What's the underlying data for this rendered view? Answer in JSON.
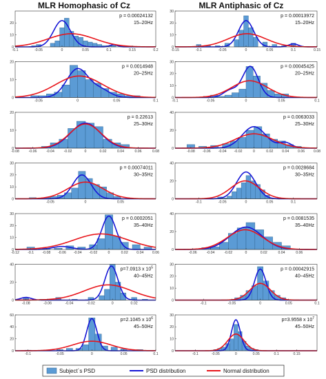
{
  "legend": {
    "items": [
      {
        "label": "Subject`s PSD",
        "kind": "bar",
        "color": "#5b9bd5"
      },
      {
        "label": "PSD distribution",
        "kind": "line",
        "color": "#1515d6"
      },
      {
        "label": "Normal distribution",
        "kind": "line",
        "color": "#e8141a"
      }
    ]
  },
  "chart_data": [
    {
      "type": "bar",
      "column": "MLR Homophasic of Cz",
      "title": "MLR Homophasic of Cz",
      "panels": [
        {
          "p": "p = 0.00024132",
          "band": "15–20Hz",
          "ylim": [
            0,
            30
          ],
          "yticks": [
            0,
            10,
            20
          ],
          "xlim": [
            -0.1,
            0.2
          ],
          "xticks": [
            -0.1,
            -0.05,
            0,
            0.05,
            0.1,
            0.15,
            0.2
          ],
          "bins": [
            -0.06,
            -0.05,
            -0.04,
            -0.03,
            -0.02,
            -0.01,
            0,
            0.01,
            0.02,
            0.03,
            0.04,
            0.05,
            0.06,
            0.07,
            0.08,
            0.09,
            0.1,
            0.11,
            0.12,
            0.13
          ],
          "counts": [
            1,
            2,
            0,
            0,
            3,
            5,
            16,
            24,
            13,
            9,
            8,
            5,
            4,
            3,
            2,
            1,
            1,
            1,
            0,
            1
          ],
          "psd": {
            "mu": 0.0,
            "sigma": 0.018,
            "amp": 22,
            "mu2": 0.11,
            "sigma2": 0.008,
            "amp2": 1.8
          },
          "normal": {
            "mu": 0.02,
            "sigma": 0.05,
            "amp": 11
          }
        },
        {
          "p": "p = 0.0014948",
          "band": "20–25Hz",
          "ylim": [
            0,
            20
          ],
          "yticks": [
            0,
            10,
            20
          ],
          "xlim": [
            -0.08,
            0.1
          ],
          "xticks": [
            -0.05,
            0,
            0.05,
            0.1
          ],
          "bins": [
            -0.055,
            -0.045,
            -0.035,
            -0.025,
            -0.015,
            -0.005,
            0.005,
            0.015,
            0.025,
            0.035,
            0.045,
            0.055,
            0.065,
            0.075
          ],
          "counts": [
            1,
            1,
            2,
            3,
            7,
            18,
            15,
            10,
            8,
            5,
            3,
            2,
            1,
            1
          ],
          "psd": {
            "mu": 0.0,
            "sigma": 0.014,
            "amp": 16,
            "mu2": 0.03,
            "sigma2": 0.012,
            "amp2": 4
          },
          "normal": {
            "mu": 0.002,
            "sigma": 0.03,
            "amp": 12
          }
        },
        {
          "p": "p = 0.22613",
          "band": "25–30Hz",
          "ylim": [
            0,
            20
          ],
          "yticks": [
            0,
            10,
            20
          ],
          "xlim": [
            -0.08,
            0.08
          ],
          "xticks": [
            -0.08,
            -0.06,
            -0.04,
            -0.02,
            0,
            0.02,
            0.04,
            0.06,
            0.08
          ],
          "bins": [
            -0.045,
            -0.035,
            -0.025,
            -0.015,
            -0.005,
            0.005,
            0.015,
            0.025,
            0.035,
            0.045
          ],
          "counts": [
            1,
            3,
            5,
            11,
            15,
            14,
            12,
            5,
            3,
            2
          ],
          "psd": {
            "mu": 0.0,
            "sigma": 0.017,
            "amp": 14
          },
          "normal": {
            "mu": 0.0,
            "sigma": 0.018,
            "amp": 13.5
          }
        },
        {
          "p": "p = 0.00074011",
          "band": "30–35Hz",
          "ylim": [
            0,
            30
          ],
          "yticks": [
            0,
            10,
            20,
            30
          ],
          "xlim": [
            -0.1,
            0.1
          ],
          "xticks": [
            -0.05,
            0,
            0.05
          ],
          "bins": [
            -0.075,
            -0.065,
            -0.055,
            -0.045,
            -0.035,
            -0.025,
            -0.015,
            -0.005,
            0.005,
            0.015,
            0.025,
            0.035,
            0.045
          ],
          "counts": [
            1,
            0,
            1,
            2,
            3,
            5,
            9,
            23,
            17,
            12,
            10,
            5,
            2
          ],
          "psd": {
            "mu": -0.005,
            "sigma": 0.013,
            "amp": 20
          },
          "normal": {
            "mu": 0.0,
            "sigma": 0.025,
            "amp": 14
          }
        },
        {
          "p": "p = 0.0002051",
          "band": "35–40Hz",
          "ylim": [
            0,
            30
          ],
          "yticks": [
            0,
            10,
            20,
            30
          ],
          "xlim": [
            -0.12,
            0.06
          ],
          "xticks": [
            -0.12,
            -0.1,
            -0.08,
            -0.06,
            -0.04,
            -0.02,
            0,
            0.02,
            0.04,
            0.06
          ],
          "bins": [
            -0.1,
            -0.08,
            -0.065,
            -0.05,
            -0.035,
            -0.02,
            -0.01,
            0.0,
            0.01,
            0.02,
            0.035,
            0.05
          ],
          "counts": [
            2,
            1,
            1,
            3,
            2,
            4,
            9,
            29,
            11,
            6,
            4,
            2
          ],
          "psd": {
            "mu": 0.0,
            "sigma": 0.009,
            "amp": 28,
            "mu2": -0.06,
            "sigma2": 0.012,
            "amp2": 2.5
          },
          "normal": {
            "mu": -0.01,
            "sigma": 0.035,
            "amp": 13
          }
        },
        {
          "p": "p=7.0913 x 10",
          "p_exp": "5",
          "band": "40–45Hz",
          "ylim": [
            0,
            40
          ],
          "yticks": [
            0,
            20,
            40
          ],
          "xlim": [
            -0.09,
            0.04
          ],
          "xticks": [
            -0.08,
            -0.06,
            -0.04,
            -0.02,
            0,
            0.02
          ],
          "bins": [
            -0.08,
            -0.065,
            -0.05,
            -0.035,
            -0.02,
            -0.01,
            -0.005,
            0.0,
            0.005,
            0.01,
            0.02,
            0.03
          ],
          "counts": [
            2,
            1,
            3,
            1,
            3,
            5,
            12,
            40,
            20,
            8,
            3,
            1
          ],
          "psd": {
            "mu": -0.001,
            "sigma": 0.006,
            "amp": 38,
            "mu2": -0.08,
            "sigma2": 0.005,
            "amp2": 3
          },
          "normal": {
            "mu": -0.004,
            "sigma": 0.022,
            "amp": 17
          }
        },
        {
          "p": "p=2.1045 x 10",
          "p_exp": "6",
          "band": "45–50Hz",
          "ylim": [
            0,
            60
          ],
          "yticks": [
            0,
            20,
            40,
            60
          ],
          "xlim": [
            -0.12,
            0.1
          ],
          "xticks": [
            -0.1,
            -0.05,
            0,
            0.05,
            0.1
          ],
          "bins": [
            -0.1,
            -0.075,
            -0.05,
            -0.035,
            -0.02,
            -0.01,
            0.0,
            0.01,
            0.02,
            0.035,
            0.05,
            0.075
          ],
          "counts": [
            1,
            1,
            2,
            4,
            4,
            10,
            55,
            28,
            8,
            6,
            3,
            2
          ],
          "psd": {
            "mu": 0.0,
            "sigma": 0.008,
            "amp": 54
          },
          "normal": {
            "mu": 0.0,
            "sigma": 0.03,
            "amp": 16
          }
        }
      ]
    },
    {
      "type": "bar",
      "column": "MLR Antiphasic of Cz",
      "title": "MLR Antiphasic of Cz",
      "panels": [
        {
          "p": "p = 0.00013972",
          "band": "15–20Hz",
          "ylim": [
            0,
            30
          ],
          "yticks": [
            0,
            10,
            20,
            30
          ],
          "xlim": [
            -0.15,
            0.15
          ],
          "xticks": [
            -0.15,
            -0.1,
            -0.05,
            0,
            0.05,
            0.1,
            0.15
          ],
          "bins": [
            -0.1,
            -0.08,
            -0.06,
            -0.04,
            -0.02,
            -0.01,
            0,
            0.01,
            0.02,
            0.04,
            0.06,
            0.08,
            0.1
          ],
          "counts": [
            2,
            1,
            1,
            3,
            6,
            14,
            26,
            16,
            8,
            4,
            2,
            1,
            3
          ],
          "psd": {
            "mu": 0.0,
            "sigma": 0.016,
            "amp": 22,
            "mu2": 0.1,
            "sigma2": 0.01,
            "amp2": 2.5
          },
          "normal": {
            "mu": 0.002,
            "sigma": 0.04,
            "amp": 11
          }
        },
        {
          "p": "p = 0.00045425",
          "band": "20–25Hz",
          "ylim": [
            0,
            30
          ],
          "yticks": [
            0,
            10,
            20,
            30
          ],
          "xlim": [
            -0.1,
            0.1
          ],
          "xticks": [
            -0.1,
            -0.05,
            0,
            0.05,
            0.1
          ],
          "bins": [
            -0.055,
            -0.045,
            -0.035,
            -0.025,
            -0.015,
            -0.005,
            0.005,
            0.015,
            0.025,
            0.035,
            0.045,
            0.055
          ],
          "counts": [
            1,
            2,
            1,
            2,
            4,
            7,
            26,
            18,
            12,
            6,
            3,
            3
          ],
          "psd": {
            "mu": 0.006,
            "sigma": 0.011,
            "amp": 26,
            "mu2": -0.022,
            "sigma2": 0.01,
            "amp2": 6
          },
          "normal": {
            "mu": 0.005,
            "sigma": 0.025,
            "amp": 14
          }
        },
        {
          "p": "p = 0.0063033",
          "band": "25–30Hz",
          "ylim": [
            0,
            40
          ],
          "yticks": [
            0,
            20,
            40
          ],
          "xlim": [
            -0.1,
            0.08
          ],
          "xticks": [
            -0.08,
            -0.06,
            -0.04,
            -0.02,
            0,
            0.02,
            0.04,
            0.06,
            0.08
          ],
          "bins": [
            -0.08,
            -0.065,
            -0.05,
            -0.035,
            -0.025,
            -0.015,
            -0.005,
            0.005,
            0.015,
            0.025,
            0.035,
            0.045,
            0.055
          ],
          "counts": [
            4,
            2,
            3,
            5,
            8,
            12,
            20,
            24,
            16,
            10,
            8,
            4,
            2
          ],
          "psd": {
            "mu": 0.0,
            "sigma": 0.015,
            "amp": 24,
            "mu2": 0.04,
            "sigma2": 0.008,
            "amp2": 6
          },
          "normal": {
            "mu": 0.0,
            "sigma": 0.024,
            "amp": 16
          }
        },
        {
          "p": "p = 0.0028684",
          "band": "30–35Hz",
          "ylim": [
            0,
            40
          ],
          "yticks": [
            0,
            20,
            40
          ],
          "xlim": [
            -0.15,
            0.15
          ],
          "xticks": [
            -0.1,
            -0.05,
            0,
            0.05,
            0.1
          ],
          "bins": [
            -0.055,
            -0.045,
            -0.035,
            -0.025,
            -0.015,
            -0.005,
            0.005,
            0.015,
            0.025,
            0.035,
            0.045
          ],
          "counts": [
            2,
            1,
            3,
            8,
            12,
            18,
            26,
            20,
            16,
            10,
            4
          ],
          "psd": {
            "mu": 0.0,
            "sigma": 0.02,
            "amp": 30
          },
          "normal": {
            "mu": -0.002,
            "sigma": 0.03,
            "amp": 20
          }
        },
        {
          "p": "p = 0.0081535",
          "band": "35–40Hz",
          "ylim": [
            0,
            40
          ],
          "yticks": [
            0,
            20,
            40
          ],
          "xlim": [
            -0.08,
            0.08
          ],
          "xticks": [
            -0.06,
            -0.04,
            -0.02,
            0,
            0.02,
            0.04,
            0.06
          ],
          "bins": [
            -0.045,
            -0.035,
            -0.025,
            -0.015,
            -0.005,
            0.005,
            0.015,
            0.025,
            0.035,
            0.045
          ],
          "counts": [
            2,
            3,
            8,
            18,
            24,
            30,
            22,
            14,
            8,
            4
          ],
          "psd": {
            "mu": 0.0,
            "sigma": 0.018,
            "amp": 25
          },
          "normal": {
            "mu": -0.001,
            "sigma": 0.02,
            "amp": 22
          }
        },
        {
          "p": "p = 0.00042915",
          "band": "40–45Hz",
          "ylim": [
            0,
            30
          ],
          "yticks": [
            0,
            10,
            20,
            30
          ],
          "xlim": [
            -0.15,
            0.1
          ],
          "xticks": [
            -0.1,
            -0.05,
            0,
            0.05,
            0.1
          ],
          "bins": [
            -0.04,
            -0.03,
            -0.02,
            -0.01,
            0,
            0.01,
            0.02,
            0.03,
            0.04
          ],
          "counts": [
            2,
            4,
            8,
            12,
            28,
            16,
            8,
            4,
            2
          ],
          "psd": {
            "mu": 0.0,
            "sigma": 0.01,
            "amp": 26
          },
          "normal": {
            "mu": 0.0,
            "sigma": 0.018,
            "amp": 14
          }
        },
        {
          "p": "p=3.9558 x 10",
          "p_exp": "7",
          "band": "45–50Hz",
          "ylim": [
            0,
            30
          ],
          "yticks": [
            0,
            10,
            20,
            30
          ],
          "xlim": [
            -0.15,
            0.2
          ],
          "xticks": [
            -0.1,
            -0.05,
            0,
            0.05,
            0.1,
            0.15
          ],
          "bins": [
            -0.05,
            -0.04,
            -0.03,
            -0.02,
            -0.01,
            0,
            0.01,
            0.02,
            0.03,
            0.04,
            0.05
          ],
          "counts": [
            1,
            2,
            3,
            6,
            10,
            22,
            16,
            8,
            4,
            2,
            1
          ],
          "psd": {
            "mu": 0.0,
            "sigma": 0.011,
            "amp": 26
          },
          "normal": {
            "mu": 0.0,
            "sigma": 0.02,
            "amp": 14
          }
        }
      ]
    }
  ]
}
